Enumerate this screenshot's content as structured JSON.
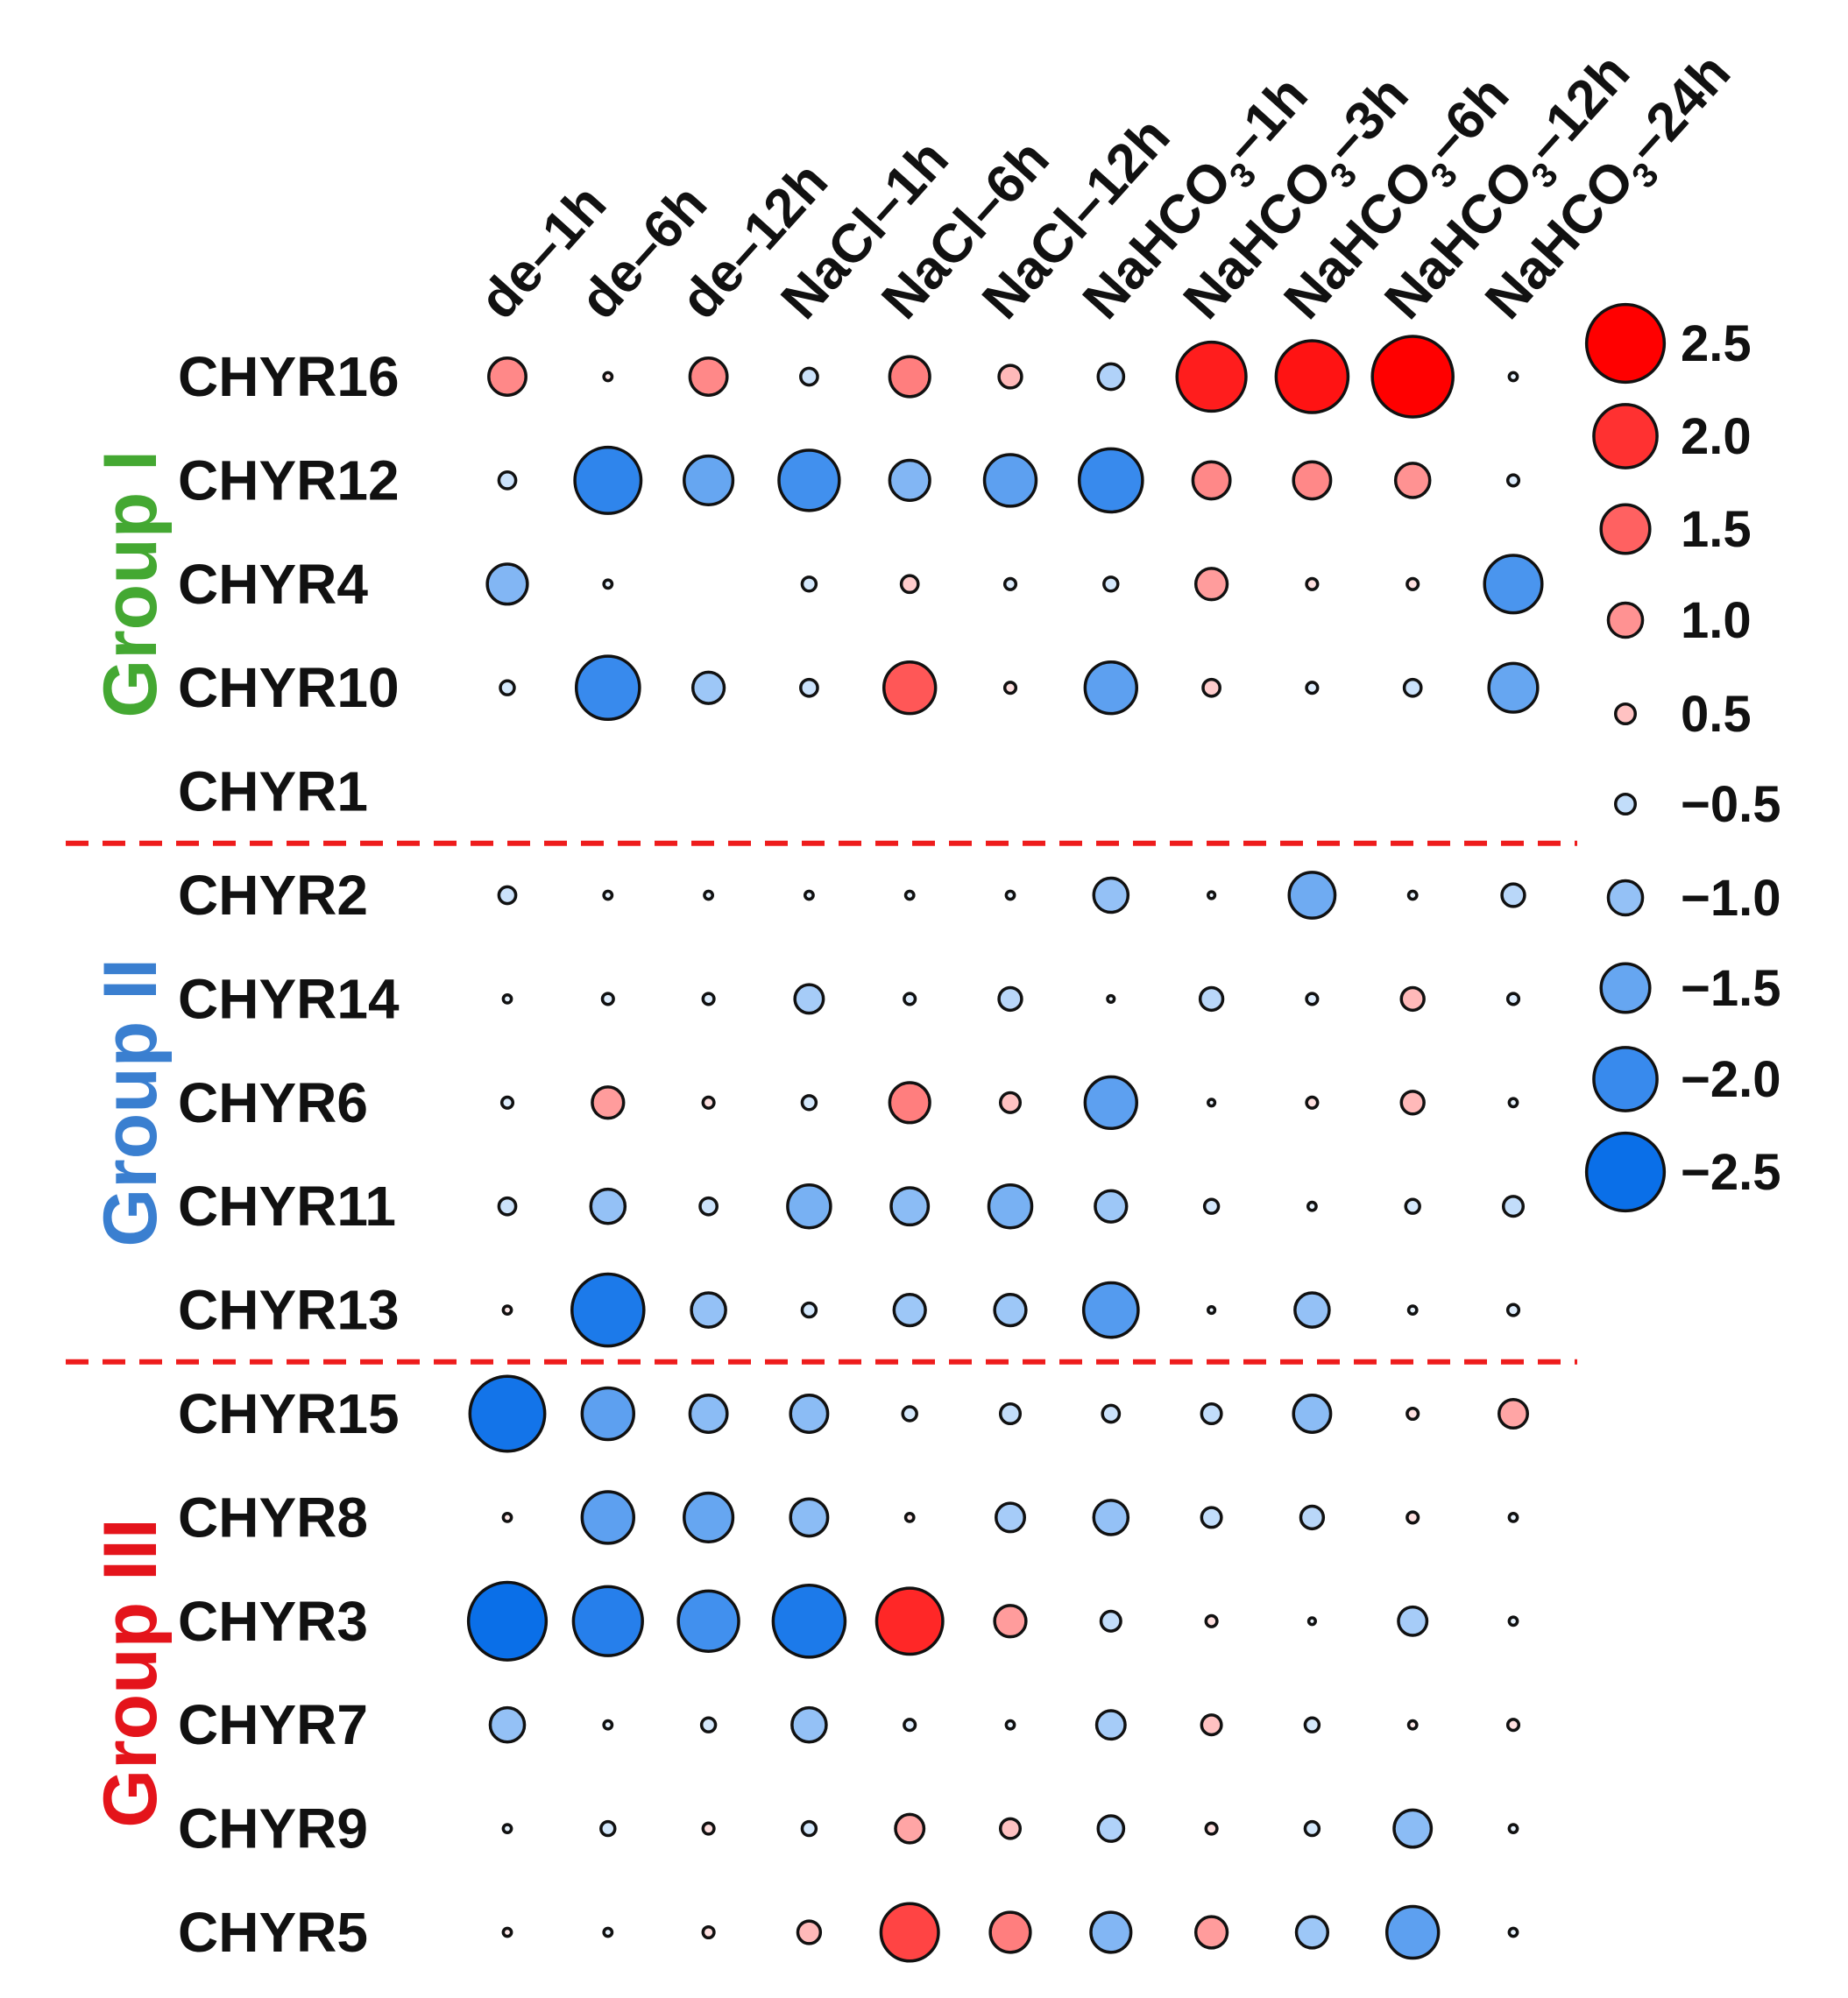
{
  "chart_data": {
    "type": "scatter",
    "subtype": "bubble-matrix",
    "columns": [
      {
        "label": "de–1h"
      },
      {
        "label": "de–6h"
      },
      {
        "label": "de–12h"
      },
      {
        "label": "NaCl–1h"
      },
      {
        "label": "NaCl–6h"
      },
      {
        "label": "NaCl–12h"
      },
      {
        "label": "NaHCO",
        "sub": "3",
        "suffix": "–1h"
      },
      {
        "label": "NaHCO",
        "sub": "3",
        "suffix": "–3h"
      },
      {
        "label": "NaHCO",
        "sub": "3",
        "suffix": "–6h"
      },
      {
        "label": "NaHCO",
        "sub": "3",
        "suffix": "–12h"
      },
      {
        "label": "NaHCO",
        "sub": "3",
        "suffix": "–24h"
      }
    ],
    "rows": [
      "CHYR16",
      "CHYR12",
      "CHYR4",
      "CHYR10",
      "CHYR1",
      "CHYR2",
      "CHYR14",
      "CHYR6",
      "CHYR11",
      "CHYR13",
      "CHYR15",
      "CHYR8",
      "CHYR3",
      "CHYR7",
      "CHYR9",
      "CHYR5"
    ],
    "values": [
      [
        1.1,
        0.1,
        1.1,
        -0.4,
        1.2,
        0.6,
        -0.7,
        2.2,
        2.3,
        2.6,
        -0.1
      ],
      [
        -0.4,
        -2.1,
        -1.5,
        -1.9,
        -1.2,
        -1.6,
        -2.0,
        1.1,
        1.1,
        1.0,
        -0.2
      ],
      [
        -1.2,
        -0.1,
        null,
        -0.3,
        0.4,
        -0.2,
        -0.3,
        0.9,
        0.2,
        0.2,
        -1.8
      ],
      [
        -0.3,
        -2.0,
        -0.9,
        -0.4,
        1.6,
        0.2,
        -1.6,
        0.4,
        -0.2,
        -0.4,
        -1.5
      ],
      [
        null,
        null,
        null,
        null,
        null,
        null,
        null,
        null,
        null,
        null,
        null
      ],
      [
        -0.4,
        -0.1,
        -0.1,
        -0.1,
        -0.1,
        -0.1,
        -1.0,
        -0.05,
        -1.4,
        -0.1,
        -0.6
      ],
      [
        -0.1,
        -0.2,
        -0.2,
        -0.8,
        -0.2,
        -0.6,
        -0.05,
        -0.6,
        -0.2,
        0.6,
        -0.2
      ],
      [
        -0.2,
        0.9,
        0.2,
        -0.3,
        1.2,
        0.5,
        -1.6,
        -0.05,
        0.2,
        0.6,
        -0.1
      ],
      [
        -0.4,
        -1.0,
        -0.4,
        -1.3,
        -1.1,
        -1.3,
        -0.9,
        -0.3,
        -0.1,
        -0.3,
        -0.5
      ],
      [
        0.1,
        -2.3,
        -1.0,
        -0.3,
        -0.9,
        -0.9,
        -1.7,
        -0.05,
        -1.0,
        -0.1,
        -0.2
      ],
      [
        -2.4,
        -1.6,
        -1.1,
        -1.1,
        -0.3,
        -0.5,
        -0.4,
        -0.5,
        -1.1,
        0.2,
        0.8
      ],
      [
        0.1,
        -1.6,
        -1.5,
        -1.1,
        0.1,
        -0.8,
        -1.0,
        -0.5,
        -0.6,
        0.2,
        -0.1
      ],
      [
        -2.5,
        -2.2,
        -1.9,
        -2.3,
        2.1,
        0.9,
        -0.5,
        0.2,
        -0.05,
        -0.8,
        -0.1
      ],
      [
        -1.0,
        -0.1,
        -0.3,
        -1.0,
        -0.2,
        -0.1,
        -0.8,
        0.5,
        -0.3,
        0.1,
        0.2
      ],
      [
        -0.1,
        -0.3,
        0.2,
        -0.3,
        0.8,
        0.5,
        -0.7,
        0.2,
        -0.3,
        -1.1,
        -0.1
      ],
      [
        0.1,
        -0.1,
        0.2,
        0.6,
        1.8,
        1.2,
        -1.2,
        0.9,
        -0.9,
        -1.6,
        -0.1
      ]
    ],
    "legend": {
      "title": "",
      "entries": [
        2.5,
        2.0,
        1.5,
        1.0,
        0.5,
        -0.5,
        -1.0,
        -1.5,
        -2.0,
        -2.5
      ],
      "labels": [
        "2.5",
        "2.0",
        "1.5",
        "1.0",
        "0.5",
        "−0.5",
        "−1.0",
        "−1.5",
        "−2.0",
        "−2.5"
      ],
      "placement": "right"
    },
    "groups": [
      {
        "name": "Group I",
        "rows": [
          "CHYR16",
          "CHYR12",
          "CHYR4",
          "CHYR10",
          "CHYR1"
        ],
        "color": "#44a832"
      },
      {
        "name": "Group II",
        "rows": [
          "CHYR2",
          "CHYR14",
          "CHYR6",
          "CHYR11",
          "CHYR13"
        ],
        "color": "#3a7fd0"
      },
      {
        "name": "Group III",
        "rows": [
          "CHYR15",
          "CHYR8",
          "CHYR3",
          "CHYR7",
          "CHYR9",
          "CHYR5"
        ],
        "color": "#e4141b"
      }
    ],
    "divider_color": "#ee1c1c",
    "color_scale": {
      "positive": [
        "#fff3f3",
        "#ff0000"
      ],
      "negative": [
        "#f0f8ff",
        "#0a6fe8"
      ],
      "range": [
        -2.5,
        2.5
      ]
    },
    "size_encodes": "absolute value"
  }
}
